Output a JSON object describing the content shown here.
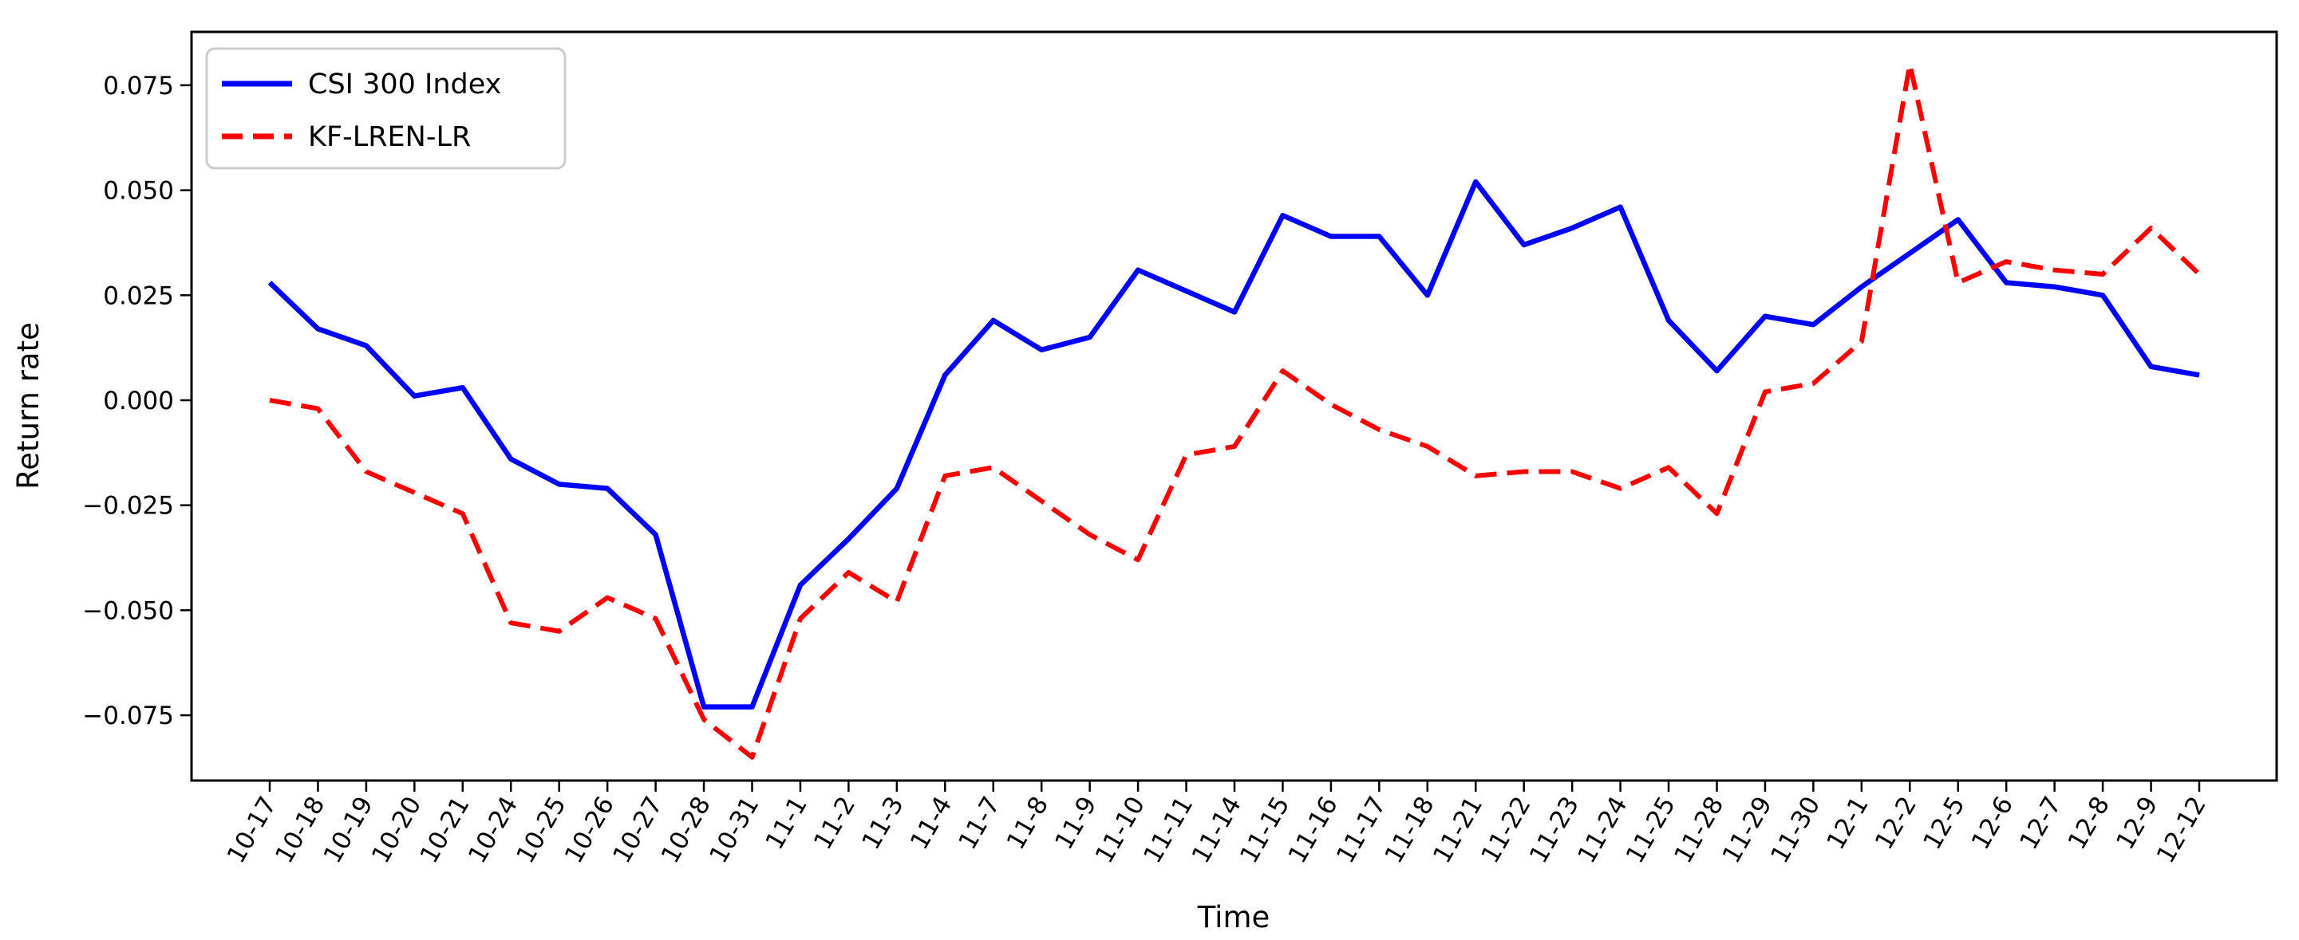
{
  "figure": {
    "background": "#ffffff"
  },
  "chart_data": {
    "type": "line",
    "title": "",
    "xlabel": "Time",
    "ylabel": "Return rate",
    "categories": [
      "10-17",
      "10-18",
      "10-19",
      "10-20",
      "10-21",
      "10-24",
      "10-25",
      "10-26",
      "10-27",
      "10-28",
      "10-31",
      "11-1",
      "11-2",
      "11-3",
      "11-4",
      "11-7",
      "11-8",
      "11-9",
      "11-10",
      "11-11",
      "11-14",
      "11-15",
      "11-16",
      "11-17",
      "11-18",
      "11-21",
      "11-22",
      "11-23",
      "11-24",
      "11-25",
      "11-28",
      "11-29",
      "11-30",
      "12-1",
      "12-2",
      "12-5",
      "12-6",
      "12-7",
      "12-8",
      "12-9",
      "12-12"
    ],
    "series": [
      {
        "name": "CSI 300 Index",
        "color": "#0000ff",
        "style": "solid",
        "values": [
          0.028,
          0.017,
          0.013,
          0.001,
          0.003,
          -0.014,
          -0.02,
          -0.021,
          -0.032,
          -0.073,
          -0.073,
          -0.044,
          -0.033,
          -0.021,
          0.006,
          0.019,
          0.012,
          0.015,
          0.031,
          0.026,
          0.021,
          0.044,
          0.039,
          0.039,
          0.025,
          0.052,
          0.037,
          0.041,
          0.046,
          0.019,
          0.007,
          0.02,
          0.018,
          0.027,
          0.035,
          0.043,
          0.028,
          0.027,
          0.025,
          0.008,
          0.006
        ]
      },
      {
        "name": "KF-LREN-LR",
        "color": "#ff0000",
        "style": "dashed",
        "values": [
          0.0,
          -0.002,
          -0.017,
          -0.022,
          -0.027,
          -0.053,
          -0.055,
          -0.047,
          -0.052,
          -0.076,
          -0.085,
          -0.052,
          -0.041,
          -0.048,
          -0.018,
          -0.016,
          -0.024,
          -0.032,
          -0.038,
          -0.013,
          -0.011,
          0.007,
          -0.001,
          -0.007,
          -0.011,
          -0.018,
          -0.017,
          -0.017,
          -0.021,
          -0.016,
          -0.027,
          0.002,
          0.004,
          0.014,
          0.08,
          0.028,
          0.033,
          0.031,
          0.03,
          0.041,
          0.03
        ]
      }
    ],
    "ylim": [
      -0.0906,
      0.0877
    ],
    "yticks": [
      0.075,
      0.05,
      0.025,
      0.0,
      -0.025,
      -0.05,
      -0.075
    ],
    "ytick_labels": [
      "0.075",
      "0.050",
      "0.025",
      "0.000",
      "−0.025",
      "−0.050",
      "−0.075"
    ],
    "grid": false,
    "legend_position": "upper left"
  },
  "legend": {
    "items": [
      {
        "label": "CSI 300 Index",
        "color": "#0000ff",
        "style": "solid"
      },
      {
        "label": "KF-LREN-LR",
        "color": "#ff0000",
        "style": "dashed"
      }
    ]
  },
  "axes": {
    "xlabel": "Time",
    "ylabel": "Return rate"
  }
}
